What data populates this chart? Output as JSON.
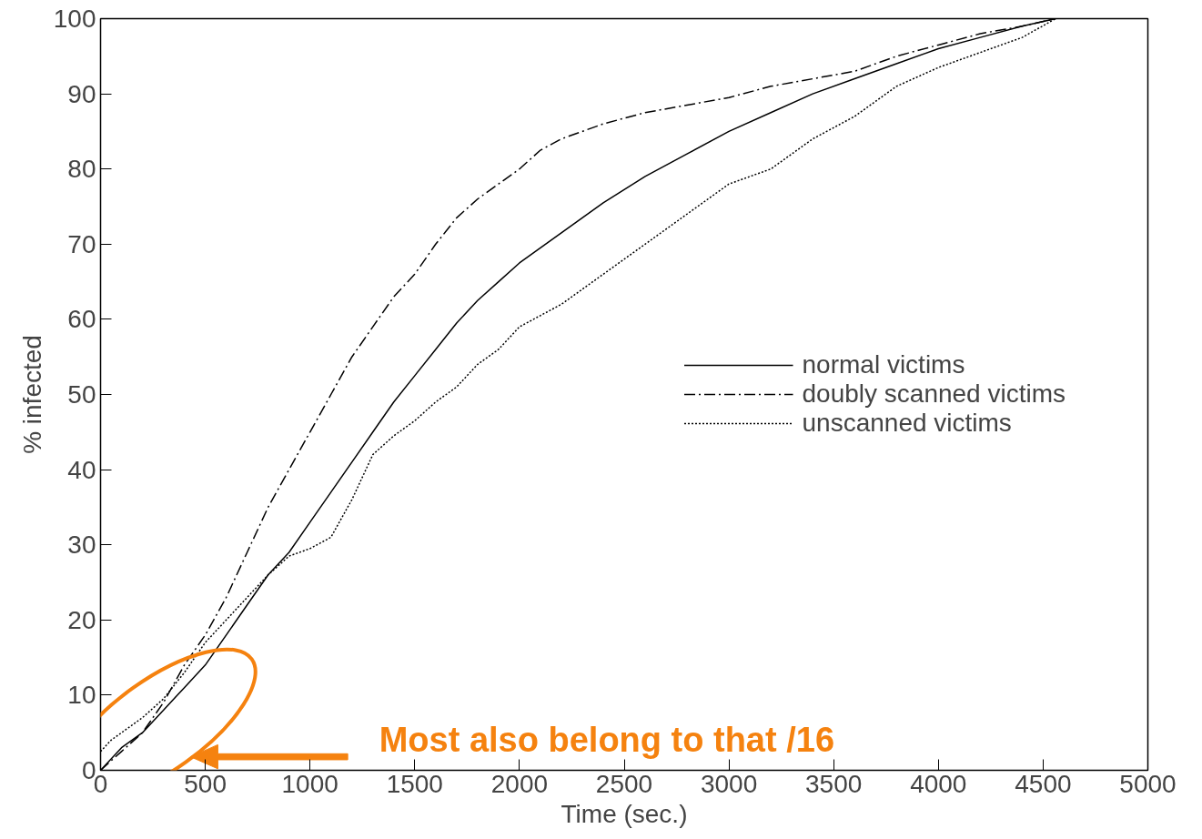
{
  "chart_data": {
    "type": "line",
    "xlabel": "Time (sec.)",
    "ylabel": "% infected",
    "xlim": [
      0,
      5000
    ],
    "xticks": [
      0,
      500,
      1000,
      1500,
      2000,
      2500,
      3000,
      3500,
      4000,
      4500,
      5000
    ],
    "ylim": [
      0,
      100
    ],
    "yticks": [
      0,
      10,
      20,
      30,
      40,
      50,
      60,
      70,
      80,
      90,
      100
    ],
    "grid": false,
    "legend": "right",
    "marker": "none",
    "annotations": [
      "Most also belong to that /16"
    ],
    "series": [
      {
        "name": "normal victims",
        "color": "#000000",
        "line_style": "solid",
        "x": [
          0,
          100,
          200,
          300,
          400,
          500,
          600,
          700,
          800,
          900,
          1000,
          1100,
          1200,
          1300,
          1400,
          1500,
          1600,
          1700,
          1800,
          1900,
          2000,
          2200,
          2400,
          2600,
          2800,
          3000,
          3200,
          3400,
          3600,
          3800,
          4000,
          4200,
          4400,
          4560
        ],
        "values": [
          0,
          3,
          5,
          8,
          11,
          14,
          18,
          22,
          26,
          29,
          33,
          37,
          41,
          45,
          49,
          52.5,
          56,
          59.5,
          62.5,
          65,
          67.5,
          71.5,
          75.5,
          79,
          82,
          85,
          87.5,
          90,
          92,
          94,
          96,
          97.5,
          99,
          100
        ]
      },
      {
        "name": "doubly scanned victims",
        "color": "#000000",
        "line_style": "dashed",
        "x": [
          0,
          100,
          200,
          300,
          400,
          500,
          600,
          700,
          800,
          900,
          1000,
          1100,
          1200,
          1300,
          1400,
          1500,
          1600,
          1700,
          1800,
          1900,
          2000,
          2100,
          2200,
          2400,
          2600,
          2800,
          3000,
          3200,
          3400,
          3600,
          3800,
          4000,
          4200,
          4400,
          4560
        ],
        "values": [
          0,
          2.5,
          5,
          9,
          14,
          18,
          23,
          29,
          35,
          40,
          45,
          50,
          55,
          59,
          63,
          66,
          70,
          73.5,
          76,
          78,
          80,
          82.5,
          84,
          86,
          87.5,
          88.5,
          89.5,
          91,
          92,
          93,
          95,
          96.5,
          98,
          99,
          100
        ]
      },
      {
        "name": "unscanned victims",
        "color": "#000000",
        "line_style": "dotted",
        "x": [
          0,
          50,
          100,
          200,
          300,
          400,
          500,
          600,
          700,
          800,
          900,
          1000,
          1100,
          1200,
          1300,
          1400,
          1500,
          1600,
          1700,
          1800,
          1900,
          2000,
          2200,
          2400,
          2600,
          2800,
          2900,
          3000,
          3200,
          3400,
          3600,
          3800,
          4000,
          4200,
          4400,
          4560
        ],
        "values": [
          2.5,
          4,
          5,
          7,
          9.5,
          13,
          17,
          20,
          23,
          26,
          28.5,
          29.5,
          31,
          36,
          42,
          44.5,
          46.5,
          49,
          51,
          54,
          56,
          59,
          62,
          66,
          70,
          74,
          76,
          78,
          80,
          84,
          87,
          91,
          93.5,
          95.5,
          97.5,
          100
        ]
      }
    ]
  }
}
